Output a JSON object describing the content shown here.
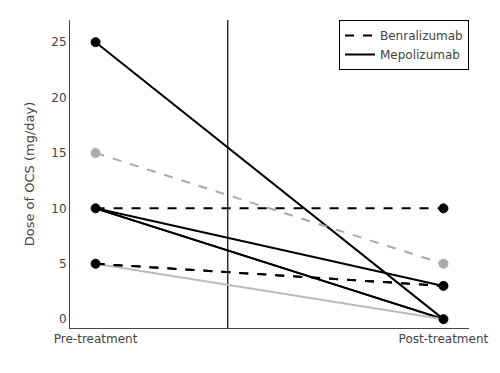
{
  "chart_data": {
    "type": "line",
    "categories": [
      "Pre-treatment",
      "Post-treatment"
    ],
    "ylabel": "Dose of OCS (mg/day)",
    "ylim": [
      -0.8,
      27
    ],
    "yticks": [
      0,
      5,
      10,
      15,
      20,
      25
    ],
    "grid": false,
    "legend": "upper right",
    "series": [
      {
        "name": "Mepolizumab",
        "line_style": "solid",
        "color": "#000000",
        "values": [
          25,
          0
        ]
      },
      {
        "name": "Mepolizumab",
        "line_style": "solid",
        "color": "#000000",
        "values": [
          10,
          0
        ]
      },
      {
        "name": "Mepolizumab",
        "line_style": "solid",
        "color": "#000000",
        "values": [
          10,
          0
        ]
      },
      {
        "name": "Mepolizumab",
        "line_style": "solid",
        "color": "#000000",
        "values": [
          10,
          3
        ]
      },
      {
        "name": "Mepolizumab",
        "line_style": "solid",
        "color": "#bbbbbb",
        "values": [
          5,
          0
        ]
      },
      {
        "name": "Benralizumab",
        "line_style": "dashed",
        "color": "#aaaaaa",
        "values": [
          15,
          5
        ]
      },
      {
        "name": "Benralizumab",
        "line_style": "dashed",
        "color": "#000000",
        "values": [
          10,
          10
        ]
      },
      {
        "name": "Benralizumab",
        "line_style": "dashed",
        "color": "#000000",
        "values": [
          5,
          3
        ]
      },
      {
        "name": "Benralizumab",
        "line_style": "dashed",
        "color": "#000000",
        "values": [
          5,
          3
        ]
      }
    ],
    "points": {
      "x": [
        "Pre-treatment",
        "Pre-treatment",
        "Pre-treatment",
        "Pre-treatment",
        "Post-treatment",
        "Post-treatment",
        "Post-treatment",
        "Post-treatment"
      ],
      "y": [
        25,
        15,
        10,
        5,
        10,
        5,
        3,
        0
      ],
      "colors": [
        "#000000",
        "#aaaaaa",
        "#000000",
        "#000000",
        "#000000",
        "#aaaaaa",
        "#000000",
        "#000000"
      ],
      "marker": "circle"
    }
  }
}
